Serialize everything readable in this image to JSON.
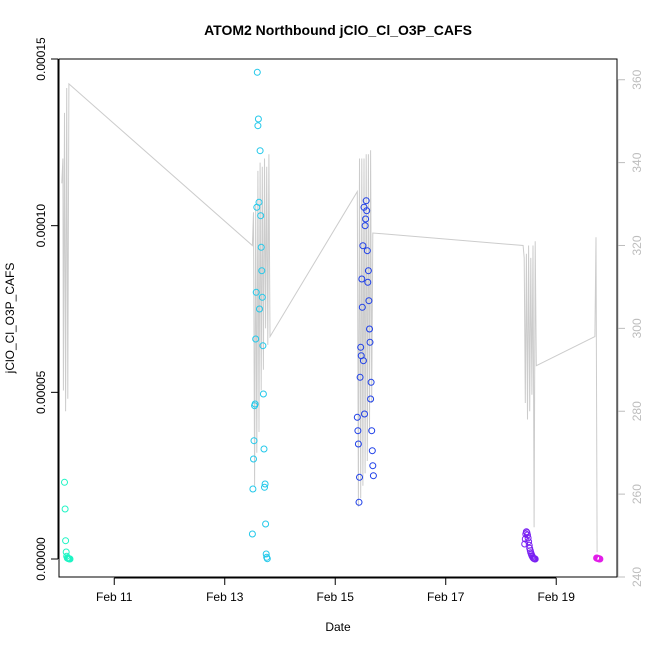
{
  "chart_data": {
    "type": "scatter",
    "title": "ATOM2 Northbound jClO_Cl_O3P_CAFS",
    "xlabel": "Date",
    "ylabel": "jClO_Cl_O3P_CAFS",
    "xlim": [
      10.0,
      20.1
    ],
    "ylim": [
      -5.4e-06,
      0.00015
    ],
    "y2lim": [
      240,
      365
    ],
    "x_ticks": [
      {
        "value": 11,
        "label": "Feb 11"
      },
      {
        "value": 13,
        "label": "Feb 13"
      },
      {
        "value": 15,
        "label": "Feb 15"
      },
      {
        "value": 17,
        "label": "Feb 17"
      },
      {
        "value": 19,
        "label": "Feb 19"
      }
    ],
    "y_ticks": [
      {
        "value": 0.0,
        "label": "0.00000"
      },
      {
        "value": 5e-05,
        "label": "0.00005"
      },
      {
        "value": 0.0001,
        "label": "0.00010"
      },
      {
        "value": 0.00015,
        "label": "0.00015"
      }
    ],
    "y2_ticks": [
      {
        "value": 240,
        "label": "240"
      },
      {
        "value": 260,
        "label": "260"
      },
      {
        "value": 280,
        "label": "280"
      },
      {
        "value": 300,
        "label": "300"
      },
      {
        "value": 320,
        "label": "320"
      },
      {
        "value": 340,
        "label": "340"
      },
      {
        "value": 360,
        "label": "360"
      }
    ],
    "secondary_line": {
      "color": "#cccccc",
      "points": [
        [
          10.05,
          335
        ],
        [
          10.07,
          341
        ],
        [
          10.08,
          285
        ],
        [
          10.1,
          352
        ],
        [
          10.12,
          280
        ],
        [
          10.14,
          358
        ],
        [
          10.16,
          283
        ],
        [
          10.18,
          359
        ],
        [
          13.5,
          320
        ],
        [
          13.52,
          328
        ],
        [
          13.54,
          262
        ],
        [
          13.56,
          330
        ],
        [
          13.58,
          270
        ],
        [
          13.6,
          338
        ],
        [
          13.62,
          275
        ],
        [
          13.64,
          340
        ],
        [
          13.66,
          285
        ],
        [
          13.68,
          339
        ],
        [
          13.7,
          290
        ],
        [
          13.72,
          341
        ],
        [
          13.74,
          300
        ],
        [
          13.76,
          339
        ],
        [
          13.78,
          296
        ],
        [
          13.8,
          342
        ],
        [
          13.82,
          298
        ],
        [
          15.4,
          333
        ],
        [
          15.42,
          257
        ],
        [
          15.44,
          341
        ],
        [
          15.46,
          259
        ],
        [
          15.48,
          341
        ],
        [
          15.5,
          262
        ],
        [
          15.52,
          341
        ],
        [
          15.54,
          265
        ],
        [
          15.56,
          342
        ],
        [
          15.58,
          268
        ],
        [
          15.6,
          342
        ],
        [
          15.62,
          275
        ],
        [
          15.64,
          343
        ],
        [
          15.66,
          282
        ],
        [
          15.68,
          323
        ],
        [
          18.4,
          320
        ],
        [
          18.42,
          317
        ],
        [
          18.44,
          282
        ],
        [
          18.46,
          318
        ],
        [
          18.48,
          278
        ],
        [
          18.5,
          320
        ],
        [
          18.52,
          280
        ],
        [
          18.54,
          317
        ],
        [
          18.56,
          284
        ],
        [
          18.58,
          320
        ],
        [
          18.6,
          252
        ],
        [
          18.62,
          321
        ],
        [
          18.64,
          291
        ],
        [
          19.7,
          298
        ],
        [
          19.72,
          322
        ],
        [
          19.74,
          246
        ]
      ]
    },
    "series": [
      {
        "color": "#1ef4c4",
        "points": [
          [
            10.1,
            2.3e-05
          ],
          [
            10.11,
            1.5e-05
          ],
          [
            10.12,
            5.5e-06
          ],
          [
            10.13,
            2.1e-06
          ],
          [
            10.14,
            8e-07
          ],
          [
            10.15,
            3e-07
          ],
          [
            10.16,
            2e-07
          ],
          [
            10.17,
            1e-07
          ],
          [
            10.18,
            1e-07
          ],
          [
            10.19,
            1e-07
          ],
          [
            10.2,
            0.0
          ]
        ]
      },
      {
        "color": "#22c8ea",
        "points": [
          [
            13.5,
            7.5e-06
          ],
          [
            13.51,
            2.1e-05
          ],
          [
            13.52,
            3e-05
          ],
          [
            13.53,
            3.55e-05
          ],
          [
            13.54,
            4.6e-05
          ],
          [
            13.55,
            4.65e-05
          ],
          [
            13.56,
            6.6e-05
          ],
          [
            13.57,
            8e-05
          ],
          [
            13.58,
            0.0001055
          ],
          [
            13.59,
            0.000146
          ],
          [
            13.6,
            0.00013
          ],
          [
            13.61,
            0.000132
          ],
          [
            13.62,
            0.000107
          ],
          [
            13.63,
            7.5e-05
          ],
          [
            13.64,
            0.0001225
          ],
          [
            13.65,
            0.000103
          ],
          [
            13.66,
            9.35e-05
          ],
          [
            13.67,
            8.65e-05
          ],
          [
            13.68,
            7.85e-05
          ],
          [
            13.69,
            6.4e-05
          ],
          [
            13.7,
            4.95e-05
          ],
          [
            13.71,
            3.3e-05
          ],
          [
            13.72,
            2.15e-05
          ],
          [
            13.73,
            2.25e-05
          ],
          [
            13.74,
            1.05e-05
          ],
          [
            13.75,
            1.5e-06
          ],
          [
            13.76,
            5e-07
          ],
          [
            13.77,
            1e-07
          ]
        ]
      },
      {
        "color": "#1e3fe8",
        "points": [
          [
            15.4,
            4.25e-05
          ],
          [
            15.41,
            3.85e-05
          ],
          [
            15.42,
            3.45e-05
          ],
          [
            15.43,
            1.7e-05
          ],
          [
            15.44,
            2.45e-05
          ],
          [
            15.45,
            5.45e-05
          ],
          [
            15.46,
            6.35e-05
          ],
          [
            15.47,
            6.1e-05
          ],
          [
            15.48,
            8.4e-05
          ],
          [
            15.49,
            7.55e-05
          ],
          [
            15.5,
            9.4e-05
          ],
          [
            15.51,
            5.95e-05
          ],
          [
            15.52,
            0.0001055
          ],
          [
            15.53,
            4.35e-05
          ],
          [
            15.54,
            0.0001
          ],
          [
            15.55,
            0.000102
          ],
          [
            15.56,
            0.0001075
          ],
          [
            15.57,
            0.0001045
          ],
          [
            15.58,
            9.25e-05
          ],
          [
            15.59,
            8.3e-05
          ],
          [
            15.6,
            8.65e-05
          ],
          [
            15.61,
            7.75e-05
          ],
          [
            15.62,
            6.9e-05
          ],
          [
            15.63,
            6.5e-05
          ],
          [
            15.64,
            4.8e-05
          ],
          [
            15.65,
            5.3e-05
          ],
          [
            15.66,
            3.85e-05
          ],
          [
            15.67,
            3.25e-05
          ],
          [
            15.68,
            2.8e-05
          ],
          [
            15.69,
            2.5e-05
          ]
        ]
      },
      {
        "color": "#7a22f2",
        "points": [
          [
            18.43,
            4.5e-06
          ],
          [
            18.44,
            6e-06
          ],
          [
            18.45,
            7.5e-06
          ],
          [
            18.46,
            8.2e-06
          ],
          [
            18.47,
            7.9e-06
          ],
          [
            18.48,
            7.2e-06
          ],
          [
            18.49,
            6.3e-06
          ],
          [
            18.5,
            5.2e-06
          ],
          [
            18.51,
            4.1e-06
          ],
          [
            18.52,
            3.2e-06
          ],
          [
            18.53,
            2.5e-06
          ],
          [
            18.54,
            1.9e-06
          ],
          [
            18.55,
            1.4e-06
          ],
          [
            18.56,
            1e-06
          ],
          [
            18.57,
            7e-07
          ],
          [
            18.58,
            4e-07
          ],
          [
            18.59,
            2e-07
          ],
          [
            18.6,
            1e-07
          ],
          [
            18.61,
            1e-07
          ],
          [
            18.62,
            0.0
          ]
        ]
      },
      {
        "color": "#e21ee8",
        "points": [
          [
            19.73,
            3e-07
          ],
          [
            19.74,
            2e-07
          ],
          [
            19.75,
            2e-07
          ],
          [
            19.76,
            1e-07
          ],
          [
            19.77,
            1e-07
          ],
          [
            19.78,
            1e-07
          ],
          [
            19.79,
            0.0
          ]
        ]
      }
    ]
  }
}
